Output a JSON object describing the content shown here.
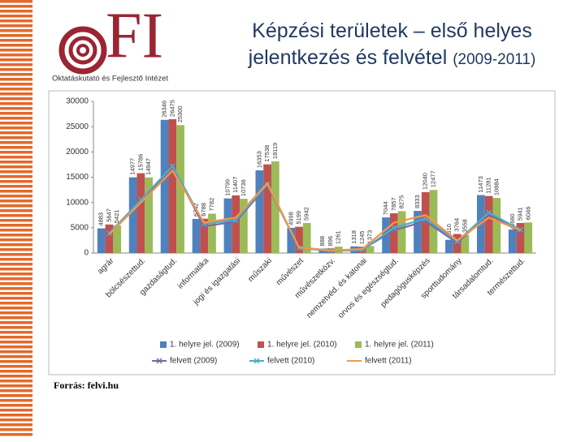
{
  "logo": {
    "text": "FI",
    "org": "Oktatáskutató és Fejlesztő Intézet"
  },
  "chart_data": {
    "type": "bar",
    "title": "Képzési területek – első helyes jelentkezés és felvétel",
    "subtitle": "(2009-2011)",
    "categories": [
      "agrár",
      "bölcsészettud.",
      "gazdaságtud.",
      "informatika",
      "jogi és igazgatási",
      "műszaki",
      "művészet",
      "művészetközv.",
      "nemzetvéd. és katonai",
      "orvos és egészségtud.",
      "pedagógusképzés",
      "sporttudomány",
      "társadalomtud.",
      "természettud."
    ],
    "series": [
      {
        "name": "1. helyre jel. (2009)",
        "type": "bar",
        "color": "#4f81bd",
        "values": [
          4883,
          14977,
          26346,
          6742,
          10799,
          16353,
          4998,
          888,
          1318,
          7044,
          8333,
          2610,
          11473,
          4660
        ]
      },
      {
        "name": "1. helyre jel. (2010)",
        "type": "bar",
        "color": "#c0504d",
        "values": [
          5647,
          15786,
          26475,
          6788,
          11407,
          17538,
          5199,
          896,
          1245,
          7857,
          12040,
          3764,
          11281,
          5941
        ]
      },
      {
        "name": "1. helyre jel. (2011)",
        "type": "bar",
        "color": "#9bbb59",
        "values": [
          5421,
          14947,
          25300,
          7782,
          10736,
          18119,
          5942,
          1261,
          1373,
          8275,
          12477,
          3558,
          10884,
          6046
        ]
      },
      {
        "name": "felvett (2009)",
        "type": "line",
        "marker": "x",
        "color": "#8064a2",
        "values": [
          3800,
          10200,
          17000,
          5300,
          6200,
          13400,
          1100,
          500,
          700,
          4500,
          6300,
          2000,
          7700,
          4100
        ]
      },
      {
        "name": "felvett (2010)",
        "type": "line",
        "marker": "x",
        "color": "#4bacc6",
        "values": [
          3900,
          10500,
          17200,
          5800,
          6500,
          13600,
          1000,
          400,
          600,
          5000,
          6800,
          2300,
          8000,
          4600
        ]
      },
      {
        "name": "felvett (2011)",
        "type": "line",
        "color": "#f79646",
        "values": [
          3700,
          10000,
          16300,
          6000,
          7000,
          13800,
          1100,
          500,
          800,
          6000,
          7500,
          2500,
          7000,
          4500
        ]
      }
    ],
    "ylim": [
      0,
      30000
    ],
    "yticks": [
      0,
      5000,
      10000,
      15000,
      20000,
      25000,
      30000
    ],
    "grid": false,
    "legend": "bottom",
    "data_labels": true
  },
  "source": "Forrás: felvi.hu"
}
